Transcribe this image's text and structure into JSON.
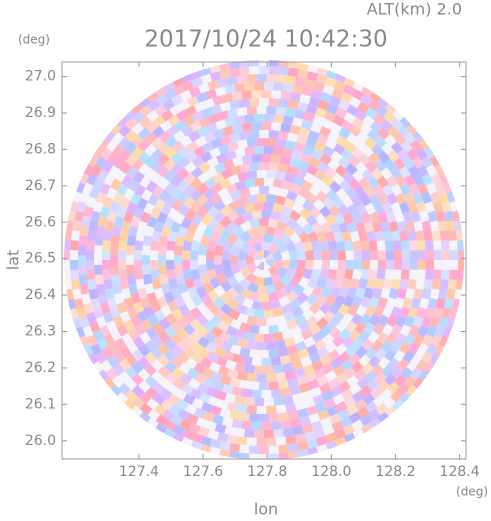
{
  "chart_data": {
    "type": "radar-ppi",
    "title": "2017/10/24 10:42:30",
    "subtitle": "ALT(km) 2.0",
    "x_label": "lon",
    "y_label": "lat",
    "x_unit": "(deg)",
    "y_unit": "(deg)",
    "xlim": [
      127.16,
      128.42
    ],
    "ylim": [
      25.95,
      27.04
    ],
    "xticks": [
      127.4,
      127.6,
      127.8,
      {
        "value": 128.0,
        "label": "128.0"
      },
      128.2,
      128.4
    ],
    "yticks": [
      {
        "value": 26.0,
        "label": "26.0"
      },
      26.1,
      26.2,
      26.3,
      26.4,
      26.5,
      26.6,
      26.7,
      26.8,
      26.9,
      {
        "value": 27.0,
        "label": "27.0"
      }
    ]
  }
}
